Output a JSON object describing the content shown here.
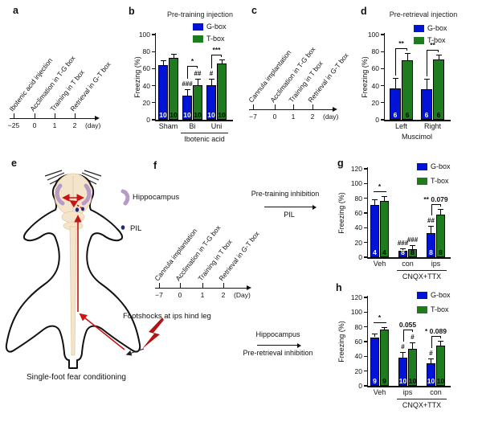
{
  "figure": {
    "panel_labels": {
      "a": "a",
      "b": "b",
      "c": "c",
      "d": "d",
      "e": "e",
      "f": "f",
      "g": "g",
      "h": "h"
    }
  },
  "colors": {
    "gbox": "#0013D6",
    "tbox": "#1E7B1E",
    "red": "#C81414",
    "dark_red": "#B51313",
    "purple": "#B79BC7",
    "beige": "#F3E4CA",
    "navy": "#1B2C7E"
  },
  "timelines": {
    "a": {
      "events": [
        "Ibotenic acid injection",
        "Acclimation in T-G box",
        "Training in T box",
        "Retrieval in G-T box"
      ],
      "ticks": [
        "−25",
        "0",
        "1",
        "2"
      ],
      "unit": "(day)"
    },
    "c": {
      "events": [
        "Cannula implantation",
        "Acclimation in T-G box",
        "Training in T box",
        "Retrieval in G-T box"
      ],
      "ticks": [
        "−7",
        "0",
        "1",
        "2"
      ],
      "unit": "(day)"
    },
    "f": {
      "events": [
        "Cannula implantation",
        "Acclimation in T-G box",
        "Training in T box",
        "Retrieval in G-T box"
      ],
      "ticks": [
        "−7",
        "0",
        "1",
        "2"
      ],
      "unit": "(Day)"
    }
  },
  "panel_f_annotations": {
    "pre_training": {
      "line1": "Pre-training inhibition",
      "line2": "PIL"
    },
    "pre_retrieval": {
      "line1": "Hippocampus",
      "line2": "Pre-retrieval inhibition"
    }
  },
  "panel_e": {
    "hippocampus_label": "Hippocampus",
    "pil_label": "PIL",
    "footshock_label": "Footshocks at ips hind leg",
    "caption": "Single-foot fear conditioning"
  },
  "chart_data": [
    {
      "id": "b",
      "type": "bar",
      "title": "Pre-training injection",
      "ylabel": "Freezing (%)",
      "ylim": [
        0,
        100
      ],
      "yticks": [
        0,
        20,
        40,
        60,
        80,
        100
      ],
      "series": [
        "G-box",
        "T-box"
      ],
      "legend_pos": "top-right",
      "groups": [
        {
          "label": "Sham",
          "bars": [
            {
              "series": "G-box",
              "value": 64,
              "err": 6,
              "n": 10
            },
            {
              "series": "T-box",
              "value": 73,
              "err": 4,
              "n": 10
            }
          ]
        },
        {
          "label": "Bi",
          "bars": [
            {
              "series": "G-box",
              "value": 28,
              "err": 8,
              "n": 10,
              "sig": "###"
            },
            {
              "series": "T-box",
              "value": 41,
              "err": 7,
              "n": 10,
              "sig": "##"
            }
          ],
          "pair": {
            "label": "*",
            "style": "bracket"
          }
        },
        {
          "label": "Uni",
          "bars": [
            {
              "series": "G-box",
              "value": 41,
              "err": 7,
              "n": 10,
              "sig": "#"
            },
            {
              "series": "T-box",
              "value": 66,
              "err": 5,
              "n": 10
            }
          ],
          "pair": {
            "label": "***",
            "style": "bracket"
          }
        }
      ],
      "group_label": {
        "text": "Ibotenic acid",
        "span": [
          1,
          2
        ],
        "line": true
      }
    },
    {
      "id": "d",
      "type": "bar",
      "title": "Pre-retrieval injection",
      "ylabel": "Freezing (%)",
      "ylim": [
        0,
        100
      ],
      "yticks": [
        0,
        20,
        40,
        60,
        80,
        100
      ],
      "series": [
        "G-box",
        "T-box"
      ],
      "legend_pos": "top-right",
      "groups": [
        {
          "label": "Left",
          "bars": [
            {
              "series": "G-box",
              "value": 37,
              "err": 12,
              "n": 6
            },
            {
              "series": "T-box",
              "value": 70,
              "err": 8,
              "n": 6
            }
          ],
          "pair": {
            "label": "**",
            "style": "bracket"
          }
        },
        {
          "label": "Right",
          "bars": [
            {
              "series": "G-box",
              "value": 36,
              "err": 12,
              "n": 6
            },
            {
              "series": "T-box",
              "value": 71,
              "err": 5,
              "n": 6
            }
          ],
          "pair": {
            "label": "**",
            "style": "bracket"
          }
        }
      ],
      "group_label": {
        "text": "Muscimol",
        "span": [
          0,
          1
        ],
        "line": false
      }
    },
    {
      "id": "g",
      "type": "bar",
      "title": "",
      "ylabel": "Freezing (%)",
      "ylim": [
        0,
        120
      ],
      "yticks": [
        0,
        20,
        40,
        60,
        80,
        100,
        120
      ],
      "series": [
        "G-box",
        "T-box"
      ],
      "legend_pos": "top-right",
      "groups": [
        {
          "label": "Veh",
          "bars": [
            {
              "series": "G-box",
              "value": 71,
              "err": 8,
              "n": 4
            },
            {
              "series": "T-box",
              "value": 76,
              "err": 7,
              "n": 4
            }
          ],
          "pair": {
            "label": "*",
            "style": "line"
          }
        },
        {
          "label": "con",
          "bars": [
            {
              "series": "G-box",
              "value": 9,
              "err": 3,
              "n": 8,
              "sig": "###"
            },
            {
              "series": "T-box",
              "value": 11,
              "err": 5,
              "n": 8,
              "sig": "###"
            }
          ]
        },
        {
          "label": "ips",
          "bars": [
            {
              "series": "G-box",
              "value": 33,
              "err": 10,
              "n": 8,
              "sig": "##"
            },
            {
              "series": "T-box",
              "value": 58,
              "err": 8,
              "n": 8
            }
          ],
          "pair": {
            "label": "** 0.079",
            "style": "bracket"
          }
        }
      ],
      "group_label": {
        "text": "CNQX+TTX",
        "span": [
          1,
          2
        ],
        "line": true
      }
    },
    {
      "id": "h",
      "type": "bar",
      "title": "",
      "ylabel": "Freezing (%)",
      "ylim": [
        0,
        120
      ],
      "yticks": [
        0,
        20,
        40,
        60,
        80,
        100,
        120
      ],
      "series": [
        "G-box",
        "T-box"
      ],
      "legend_pos": "top-right",
      "groups": [
        {
          "label": "Veh",
          "bars": [
            {
              "series": "G-box",
              "value": 66,
              "err": 5,
              "n": 9
            },
            {
              "series": "T-box",
              "value": 76,
              "err": 4,
              "n": 9
            }
          ],
          "pair": {
            "label": "*",
            "style": "line"
          }
        },
        {
          "label": "ips",
          "bars": [
            {
              "series": "G-box",
              "value": 38,
              "err": 8,
              "n": 10,
              "sig": "#"
            },
            {
              "series": "T-box",
              "value": 50,
              "err": 9,
              "n": 10,
              "sig": "#"
            }
          ],
          "pair": {
            "label": "0.055",
            "style": "bracket"
          }
        },
        {
          "label": "con",
          "bars": [
            {
              "series": "G-box",
              "value": 31,
              "err": 6,
              "n": 10,
              "sig": "#"
            },
            {
              "series": "T-box",
              "value": 55,
              "err": 6,
              "n": 10
            }
          ],
          "pair": {
            "label": "* 0.089",
            "style": "bracket"
          }
        }
      ],
      "group_label": {
        "text": "CNQX+TTX",
        "span": [
          1,
          2
        ],
        "line": true
      }
    }
  ]
}
